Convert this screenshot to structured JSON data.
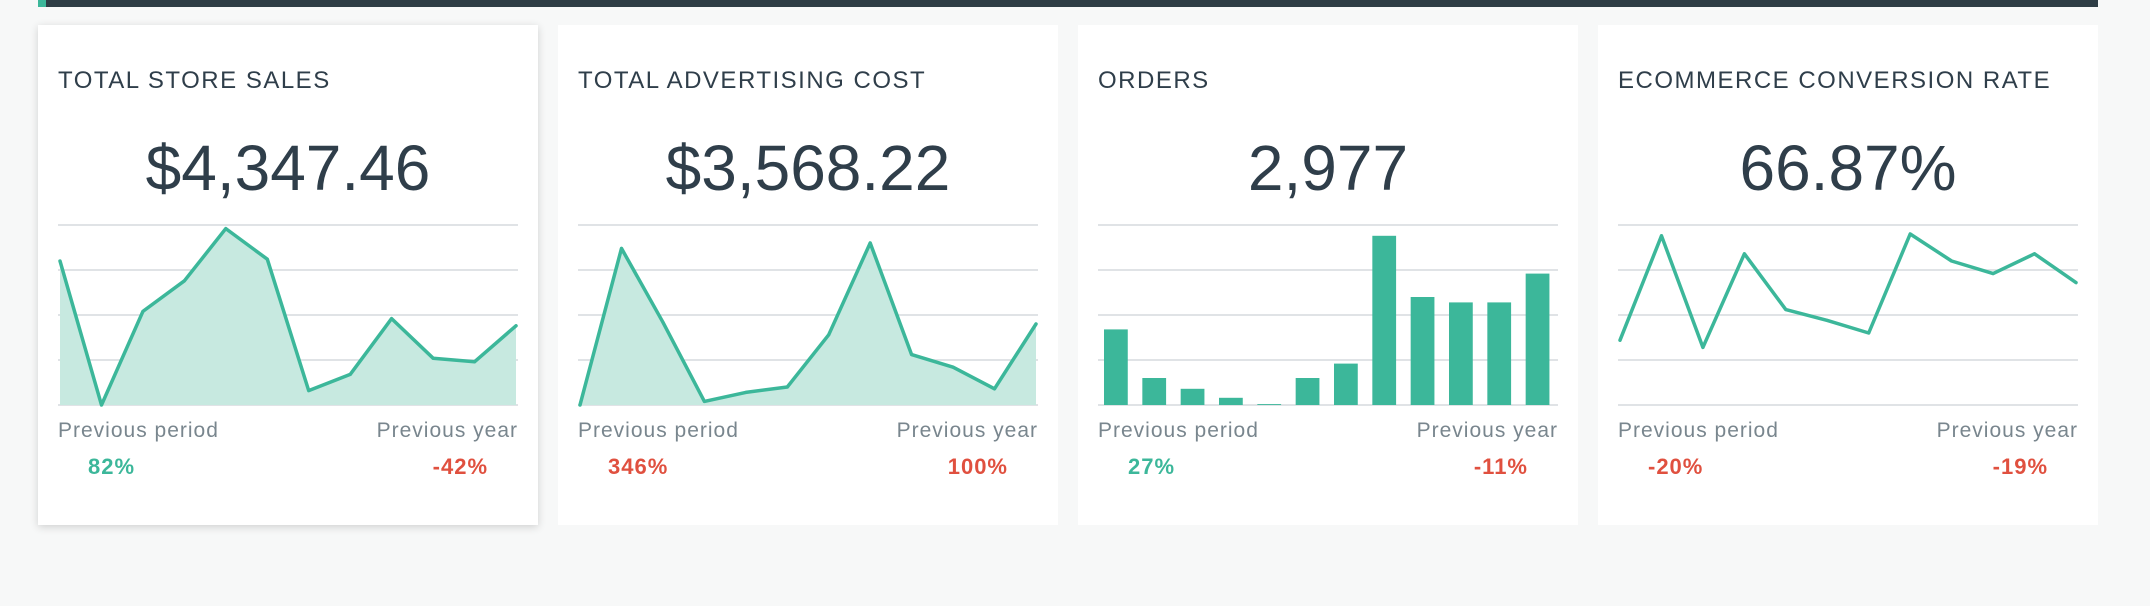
{
  "colors": {
    "accent": "#3cb79a",
    "fill": "#c7e9e0",
    "positive": "#3cb79a",
    "negative": "#e0503f",
    "grid": "#d6dadd",
    "text": "#2f3e4a",
    "muted": "#79868e"
  },
  "labels": {
    "previous_period": "Previous period",
    "previous_year": "Previous year"
  },
  "cards": [
    {
      "title": "TOTAL STORE SALES",
      "value": "$4,347.46",
      "previous_period_change": "82%",
      "previous_period_status": "positive",
      "previous_year_change": "-42%",
      "previous_year_status": "negative"
    },
    {
      "title": "TOTAL ADVERTISING COST",
      "value": "$3,568.22",
      "previous_period_change": "346%",
      "previous_period_status": "negative",
      "previous_year_change": "100%",
      "previous_year_status": "negative"
    },
    {
      "title": "ORDERS",
      "value": "2,977",
      "previous_period_change": "27%",
      "previous_period_status": "positive",
      "previous_year_change": "-11%",
      "previous_year_status": "negative"
    },
    {
      "title": "ECOMMERCE CONVERSION RATE",
      "value": "66.87%",
      "previous_period_change": "-20%",
      "previous_period_status": "negative",
      "previous_year_change": "-19%",
      "previous_year_status": "negative"
    }
  ],
  "chart_data": [
    {
      "type": "area",
      "ylim": [
        0,
        100
      ],
      "grid": true,
      "y": [
        80,
        0,
        52,
        69,
        98,
        81,
        8,
        17,
        48,
        26,
        24,
        44
      ]
    },
    {
      "type": "area",
      "ylim": [
        0,
        100
      ],
      "grid": true,
      "y": [
        0,
        87,
        46,
        2,
        7,
        10,
        39,
        90,
        28,
        21,
        9,
        45
      ]
    },
    {
      "type": "bar",
      "ylim": [
        0,
        100
      ],
      "grid": true,
      "values": [
        42,
        15,
        9,
        4,
        0.5,
        15,
        23,
        94,
        60,
        57,
        57,
        73
      ]
    },
    {
      "type": "line",
      "ylim": [
        0,
        100
      ],
      "grid": true,
      "y": [
        36,
        94,
        32,
        84,
        53,
        47,
        40,
        95,
        80,
        73,
        84,
        68
      ]
    }
  ]
}
